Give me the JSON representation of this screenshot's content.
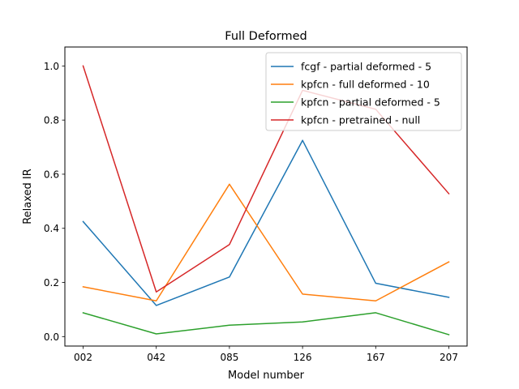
{
  "chart_data": {
    "type": "line",
    "title": "Full Deformed",
    "xlabel": "Model number",
    "ylabel": "Relaxed IR",
    "categories": [
      "002",
      "042",
      "085",
      "126",
      "167",
      "207"
    ],
    "ylim": [
      -0.035,
      1.07
    ],
    "yticks": [
      0.0,
      0.2,
      0.4,
      0.6,
      0.8,
      1.0
    ],
    "ytick_labels": [
      "0.0",
      "0.2",
      "0.4",
      "0.6",
      "0.8",
      "1.0"
    ],
    "grid": false,
    "legend_position": "top-right",
    "series": [
      {
        "name": "fcgf - partial deformed - 5",
        "color": "#1f77b4",
        "values": [
          0.425,
          0.115,
          0.22,
          0.725,
          0.197,
          0.145
        ]
      },
      {
        "name": "kpfcn - full deformed - 10",
        "color": "#ff7f0e",
        "values": [
          0.184,
          0.132,
          0.563,
          0.157,
          0.132,
          0.276
        ]
      },
      {
        "name": "kpfcn - partial deformed - 5",
        "color": "#2ca02c",
        "values": [
          0.088,
          0.01,
          0.042,
          0.054,
          0.088,
          0.007
        ]
      },
      {
        "name": "kpfcn - pretrained - null",
        "color": "#d62728",
        "values": [
          1.0,
          0.165,
          0.34,
          0.91,
          0.84,
          0.528
        ]
      }
    ]
  }
}
